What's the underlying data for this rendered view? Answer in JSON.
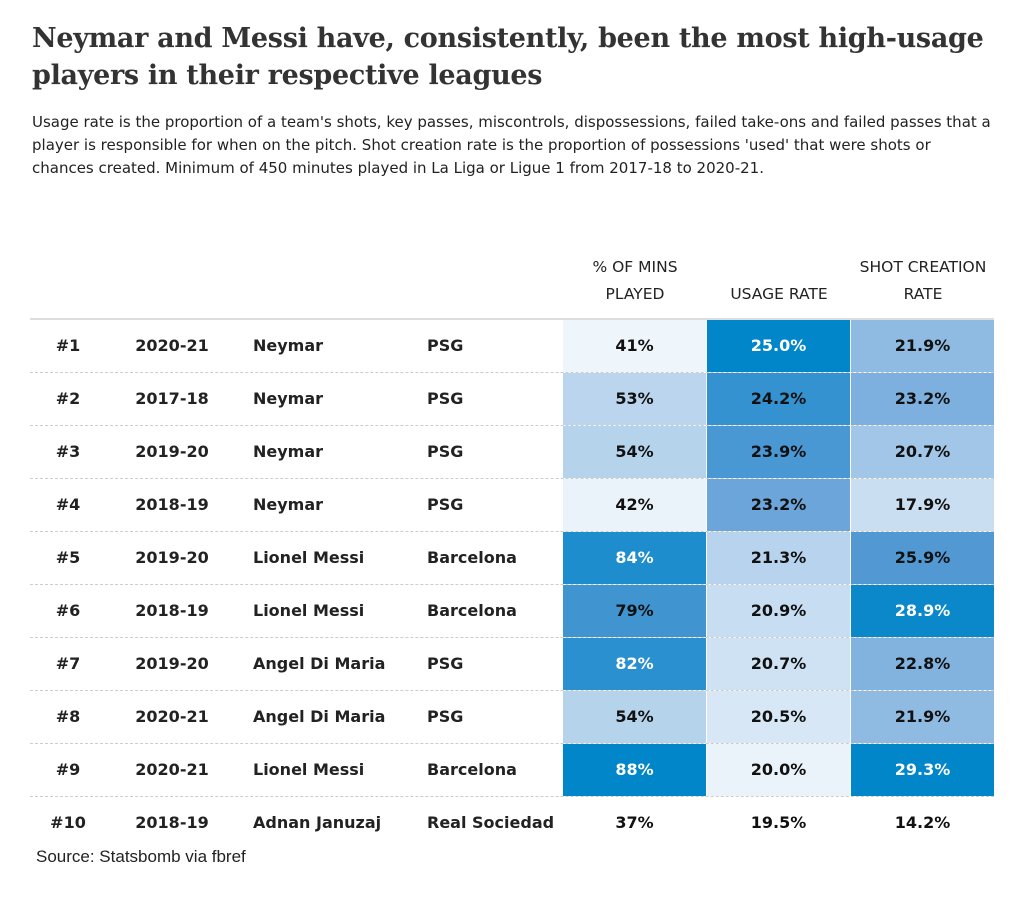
{
  "title": "Neymar and Messi have, consistently, been the most high-usage players in their respective leagues",
  "subtitle": "Usage rate is the proportion of a team's shots, key passes, miscontrols, dispossessions, failed take-ons and failed passes that a player is responsible for when on the pitch. Shot creation rate is the proportion of possessions 'used' that were shots or chances created. Minimum of 450 minutes played in La Liga or Ligue 1 from 2017-18 to 2020-21.",
  "source": "Source: Statsbomb via fbref",
  "colors": {
    "low": "#ffffff",
    "mid": "#5b9bd5",
    "high": "#0086c9"
  },
  "chart_data": {
    "type": "table",
    "columns": [
      "",
      "",
      "",
      "",
      "% OF MINS PLAYED",
      "USAGE RATE",
      "SHOT CREATION RATE"
    ],
    "rows": [
      [
        "#1",
        "2020-21",
        "Neymar",
        "PSG",
        "41%",
        "25.0%",
        "21.9%"
      ],
      [
        "#2",
        "2017-18",
        "Neymar",
        "PSG",
        "53%",
        "24.2%",
        "23.2%"
      ],
      [
        "#3",
        "2019-20",
        "Neymar",
        "PSG",
        "54%",
        "23.9%",
        "20.7%"
      ],
      [
        "#4",
        "2018-19",
        "Neymar",
        "PSG",
        "42%",
        "23.2%",
        "17.9%"
      ],
      [
        "#5",
        "2019-20",
        "Lionel Messi",
        "Barcelona",
        "84%",
        "21.3%",
        "25.9%"
      ],
      [
        "#6",
        "2018-19",
        "Lionel Messi",
        "Barcelona",
        "79%",
        "20.9%",
        "28.9%"
      ],
      [
        "#7",
        "2019-20",
        "Angel Di Maria",
        "PSG",
        "82%",
        "20.7%",
        "22.8%"
      ],
      [
        "#8",
        "2020-21",
        "Angel Di Maria",
        "PSG",
        "54%",
        "20.5%",
        "21.9%"
      ],
      [
        "#9",
        "2020-21",
        "Lionel Messi",
        "Barcelona",
        "88%",
        "20.0%",
        "29.3%"
      ],
      [
        "#10",
        "2018-19",
        "Adnan Januzaj",
        "Real Sociedad",
        "37%",
        "19.5%",
        "14.2%"
      ]
    ]
  }
}
